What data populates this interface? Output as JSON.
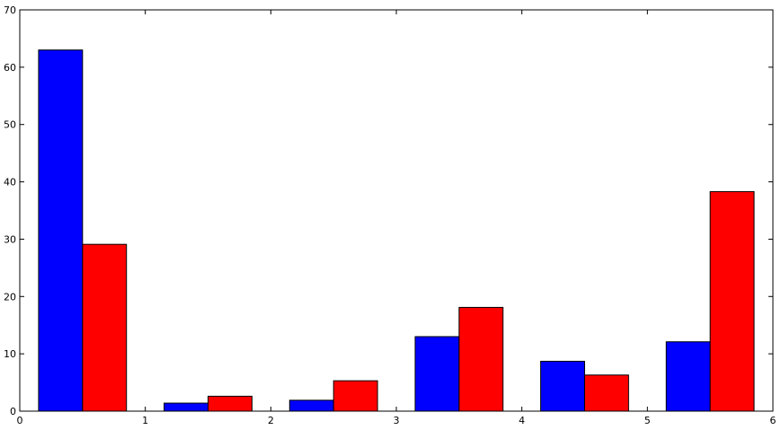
{
  "chart_data": {
    "type": "bar",
    "title": "",
    "xlabel": "",
    "ylabel": "",
    "xlim": [
      0,
      6
    ],
    "ylim": [
      0,
      70
    ],
    "xticks": [
      0,
      1,
      2,
      3,
      4,
      5,
      6
    ],
    "yticks": [
      0,
      10,
      20,
      30,
      40,
      50,
      60,
      70
    ],
    "grid": false,
    "bar_width": 0.35,
    "series": [
      {
        "color": "#0000ff",
        "x": [
          0.15,
          1.15,
          2.15,
          3.15,
          4.15,
          5.15
        ],
        "values": [
          63.0,
          1.4,
          1.9,
          13.0,
          8.7,
          12.1
        ]
      },
      {
        "color": "#ff0000",
        "x": [
          0.5,
          1.5,
          2.5,
          3.5,
          4.5,
          5.5
        ],
        "values": [
          29.1,
          2.6,
          5.3,
          18.1,
          6.3,
          38.3
        ]
      }
    ]
  }
}
